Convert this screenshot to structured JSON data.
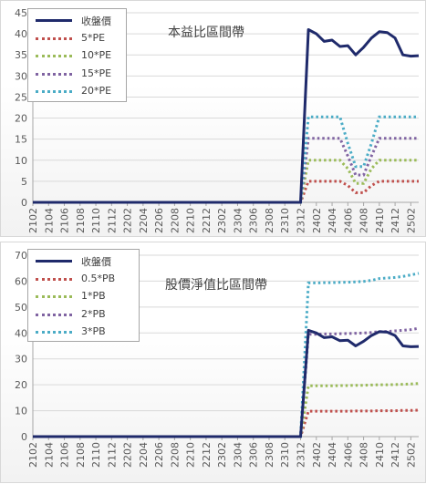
{
  "chart_data": [
    {
      "type": "line",
      "title": "本益比區間帶",
      "xlabel": "",
      "ylabel": "",
      "ylim": [
        0,
        45
      ],
      "yticks": [
        0,
        5,
        10,
        15,
        20,
        25,
        30,
        35,
        40,
        45
      ],
      "grid": true,
      "legend_position": "top-left",
      "x": [
        "2102",
        "2103",
        "2104",
        "2105",
        "2106",
        "2107",
        "2108",
        "2109",
        "2110",
        "2111",
        "2112",
        "2201",
        "2202",
        "2203",
        "2204",
        "2205",
        "2206",
        "2207",
        "2208",
        "2209",
        "2210",
        "2211",
        "2212",
        "2301",
        "2302",
        "2303",
        "2304",
        "2305",
        "2306",
        "2307",
        "2308",
        "2309",
        "2310",
        "2311",
        "2312",
        "2401",
        "2402",
        "2403",
        "2404",
        "2405",
        "2406",
        "2407",
        "2408",
        "2409",
        "2410",
        "2411",
        "2412",
        "2501",
        "2502",
        "2503"
      ],
      "xtick_labels": [
        "2102",
        "2104",
        "2106",
        "2108",
        "2110",
        "2112",
        "2202",
        "2204",
        "2206",
        "2208",
        "2210",
        "2212",
        "2302",
        "2304",
        "2306",
        "2308",
        "2310",
        "2312",
        "2402",
        "2404",
        "2406",
        "2408",
        "2410",
        "2412",
        "2502"
      ],
      "series": [
        {
          "name": "收盤價",
          "color": "#1f2a6b",
          "style": "solid",
          "values": [
            0,
            0,
            0,
            0,
            0,
            0,
            0,
            0,
            0,
            0,
            0,
            0,
            0,
            0,
            0,
            0,
            0,
            0,
            0,
            0,
            0,
            0,
            0,
            0,
            0,
            0,
            0,
            0,
            0,
            0,
            0,
            0,
            0,
            0,
            0,
            41,
            40,
            38.2,
            38.5,
            37,
            37.2,
            35,
            36.8,
            39,
            40.5,
            40.3,
            39,
            35,
            34.7,
            34.8
          ]
        },
        {
          "name": "5*PE",
          "color": "#c0504d",
          "style": "dotted",
          "values": [
            0,
            0,
            0,
            0,
            0,
            0,
            0,
            0,
            0,
            0,
            0,
            0,
            0,
            0,
            0,
            0,
            0,
            0,
            0,
            0,
            0,
            0,
            0,
            0,
            0,
            0,
            0,
            0,
            0,
            0,
            0,
            0,
            0,
            0,
            0,
            5,
            5,
            5,
            5,
            5,
            4,
            2.3,
            2.3,
            4,
            5,
            5,
            5,
            5,
            5,
            5
          ]
        },
        {
          "name": "10*PE",
          "color": "#9bbb59",
          "style": "dotted",
          "values": [
            0,
            0,
            0,
            0,
            0,
            0,
            0,
            0,
            0,
            0,
            0,
            0,
            0,
            0,
            0,
            0,
            0,
            0,
            0,
            0,
            0,
            0,
            0,
            0,
            0,
            0,
            0,
            0,
            0,
            0,
            0,
            0,
            0,
            0,
            0,
            10,
            10,
            10,
            10,
            10,
            8,
            4.5,
            4.5,
            8,
            10,
            10,
            10,
            10,
            10,
            10
          ]
        },
        {
          "name": "15*PE",
          "color": "#8064a2",
          "style": "dotted",
          "values": [
            0,
            0,
            0,
            0,
            0,
            0,
            0,
            0,
            0,
            0,
            0,
            0,
            0,
            0,
            0,
            0,
            0,
            0,
            0,
            0,
            0,
            0,
            0,
            0,
            0,
            0,
            0,
            0,
            0,
            0,
            0,
            0,
            0,
            0,
            0,
            15.2,
            15.2,
            15.2,
            15.2,
            15.2,
            11,
            6.5,
            6.5,
            11,
            15.2,
            15.2,
            15.2,
            15.2,
            15.2,
            15.2
          ]
        },
        {
          "name": "20*PE",
          "color": "#4bacc6",
          "style": "dotted",
          "values": [
            0,
            0,
            0,
            0,
            0,
            0,
            0,
            0,
            0,
            0,
            0,
            0,
            0,
            0,
            0,
            0,
            0,
            0,
            0,
            0,
            0,
            0,
            0,
            0,
            0,
            0,
            0,
            0,
            0,
            0,
            0,
            0,
            0,
            0,
            0,
            20.3,
            20.3,
            20.3,
            20.3,
            20.3,
            14,
            8.5,
            8.5,
            14,
            20.3,
            20.3,
            20.3,
            20.3,
            20.3,
            20.3
          ]
        }
      ]
    },
    {
      "type": "line",
      "title": "股價淨值比區間帶",
      "xlabel": "",
      "ylabel": "",
      "ylim": [
        0,
        70
      ],
      "yticks": [
        0,
        10,
        20,
        30,
        40,
        50,
        60,
        70
      ],
      "grid": true,
      "legend_position": "top-left",
      "x": [
        "2102",
        "2103",
        "2104",
        "2105",
        "2106",
        "2107",
        "2108",
        "2109",
        "2110",
        "2111",
        "2112",
        "2201",
        "2202",
        "2203",
        "2204",
        "2205",
        "2206",
        "2207",
        "2208",
        "2209",
        "2210",
        "2211",
        "2212",
        "2301",
        "2302",
        "2303",
        "2304",
        "2305",
        "2306",
        "2307",
        "2308",
        "2309",
        "2310",
        "2311",
        "2312",
        "2401",
        "2402",
        "2403",
        "2404",
        "2405",
        "2406",
        "2407",
        "2408",
        "2409",
        "2410",
        "2411",
        "2412",
        "2501",
        "2502",
        "2503"
      ],
      "xtick_labels": [
        "2102",
        "2104",
        "2106",
        "2108",
        "2110",
        "2112",
        "2202",
        "2204",
        "2206",
        "2208",
        "2210",
        "2212",
        "2302",
        "2304",
        "2306",
        "2308",
        "2310",
        "2312",
        "2402",
        "2404",
        "2406",
        "2408",
        "2410",
        "2412",
        "2502"
      ],
      "series": [
        {
          "name": "收盤價",
          "color": "#1f2a6b",
          "style": "solid",
          "values": [
            0,
            0,
            0,
            0,
            0,
            0,
            0,
            0,
            0,
            0,
            0,
            0,
            0,
            0,
            0,
            0,
            0,
            0,
            0,
            0,
            0,
            0,
            0,
            0,
            0,
            0,
            0,
            0,
            0,
            0,
            0,
            0,
            0,
            0,
            0,
            41,
            40,
            38.2,
            38.5,
            37,
            37.2,
            35,
            36.8,
            39,
            40.5,
            40.3,
            39,
            35,
            34.7,
            34.8
          ]
        },
        {
          "name": "0.5*PB",
          "color": "#c0504d",
          "style": "dotted",
          "values": [
            0,
            0,
            0,
            0,
            0,
            0,
            0,
            0,
            0,
            0,
            0,
            0,
            0,
            0,
            0,
            0,
            0,
            0,
            0,
            0,
            0,
            0,
            0,
            0,
            0,
            0,
            0,
            0,
            0,
            0,
            0,
            0,
            0,
            0,
            0,
            9.8,
            9.8,
            9.8,
            9.8,
            9.8,
            9.8,
            9.9,
            9.9,
            9.9,
            10,
            10,
            10,
            10.1,
            10.1,
            10.2
          ]
        },
        {
          "name": "1*PB",
          "color": "#9bbb59",
          "style": "dotted",
          "values": [
            0,
            0,
            0,
            0,
            0,
            0,
            0,
            0,
            0,
            0,
            0,
            0,
            0,
            0,
            0,
            0,
            0,
            0,
            0,
            0,
            0,
            0,
            0,
            0,
            0,
            0,
            0,
            0,
            0,
            0,
            0,
            0,
            0,
            0,
            0,
            19.6,
            19.6,
            19.6,
            19.6,
            19.7,
            19.7,
            19.8,
            19.8,
            19.9,
            20,
            20,
            20.1,
            20.2,
            20.3,
            20.5
          ]
        },
        {
          "name": "2*PB",
          "color": "#8064a2",
          "style": "dotted",
          "values": [
            0,
            0,
            0,
            0,
            0,
            0,
            0,
            0,
            0,
            0,
            0,
            0,
            0,
            0,
            0,
            0,
            0,
            0,
            0,
            0,
            0,
            0,
            0,
            0,
            0,
            0,
            0,
            0,
            0,
            0,
            0,
            0,
            0,
            0,
            0,
            39.5,
            39.5,
            39.6,
            39.6,
            39.7,
            39.8,
            39.9,
            40,
            40.2,
            40.5,
            40.6,
            40.8,
            41,
            41.3,
            41.8
          ]
        },
        {
          "name": "3*PB",
          "color": "#4bacc6",
          "style": "dotted",
          "values": [
            0,
            0,
            0,
            0,
            0,
            0,
            0,
            0,
            0,
            0,
            0,
            0,
            0,
            0,
            0,
            0,
            0,
            0,
            0,
            0,
            0,
            0,
            0,
            0,
            0,
            0,
            0,
            0,
            0,
            0,
            0,
            0,
            0,
            0,
            0,
            59.3,
            59.3,
            59.4,
            59.4,
            59.5,
            59.6,
            59.7,
            59.9,
            60.3,
            61,
            61.2,
            61.4,
            61.8,
            62.4,
            63
          ]
        }
      ]
    }
  ]
}
